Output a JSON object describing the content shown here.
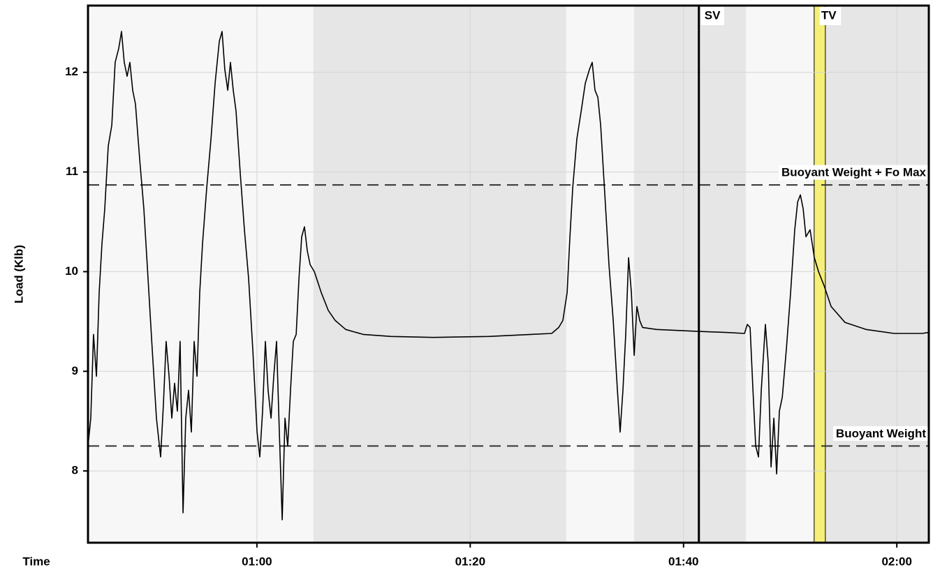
{
  "chart_data": {
    "type": "line",
    "x_label": "Time",
    "y_label": "Load (Klb)",
    "xlim": [
      44.16,
      123.0
    ],
    "ylim": [
      7.28,
      12.67
    ],
    "xticks": [
      {
        "value": 60,
        "label": "01:00"
      },
      {
        "value": 80,
        "label": "01:20"
      },
      {
        "value": 100,
        "label": "01:40"
      },
      {
        "value": 120,
        "label": "02:00"
      }
    ],
    "yticks": [
      8,
      9,
      10,
      11,
      12
    ],
    "grid": true,
    "color": "#000000",
    "background": "#f7f7f7",
    "shade_color": "#e6e6e6",
    "shaded_regions": [
      [
        65.3,
        89.0
      ],
      [
        95.36,
        105.85
      ],
      [
        113.3,
        123.0
      ]
    ],
    "reference_lines": [
      {
        "label": "Buoyant Weight + Fo Max",
        "value": 10.87
      },
      {
        "label": "Buoyant Weight",
        "value": 8.25
      }
    ],
    "markers": [
      {
        "label": "SV",
        "x": 101.44
      }
    ],
    "bands": [
      {
        "label": "TV",
        "x_range": [
          112.25,
          113.3
        ],
        "color": "#f5ef7a"
      }
    ],
    "x": [
      44.16,
      44.42,
      44.68,
      44.95,
      45.21,
      45.47,
      45.73,
      46.06,
      46.39,
      46.71,
      47.04,
      47.3,
      47.56,
      47.83,
      48.09,
      48.35,
      48.61,
      49.01,
      49.4,
      49.79,
      50.18,
      50.58,
      50.97,
      51.23,
      51.49,
      51.76,
      52.02,
      52.28,
      52.54,
      52.8,
      53.07,
      53.33,
      53.59,
      53.85,
      54.11,
      54.38,
      54.64,
      54.9,
      55.29,
      55.69,
      56.08,
      56.47,
      56.73,
      56.99,
      57.26,
      57.52,
      57.78,
      58.04,
      58.44,
      58.83,
      59.22,
      59.61,
      60.01,
      60.27,
      60.53,
      60.79,
      61.05,
      61.32,
      61.58,
      61.84,
      62.1,
      62.37,
      62.63,
      62.89,
      63.15,
      63.41,
      63.68,
      63.94,
      64.2,
      64.46,
      64.72,
      64.99,
      65.38,
      66.03,
      66.69,
      67.34,
      68.32,
      69.96,
      72.58,
      76.51,
      81.75,
      85.68,
      87.64,
      88.3,
      88.69,
      89.09,
      89.35,
      89.61,
      90.0,
      90.4,
      90.79,
      91.18,
      91.44,
      91.7,
      91.97,
      92.23,
      92.62,
      93.01,
      93.41,
      93.8,
      94.06,
      94.32,
      94.58,
      94.85,
      95.11,
      95.37,
      95.63,
      95.89,
      96.16,
      97.47,
      99.43,
      101.4,
      104.02,
      105.72,
      105.98,
      106.24,
      106.51,
      106.77,
      107.03,
      107.29,
      107.68,
      107.94,
      108.21,
      108.47,
      108.73,
      108.99,
      109.26,
      109.65,
      110.04,
      110.43,
      110.7,
      110.96,
      111.22,
      111.48,
      111.87,
      112.27,
      112.66,
      113.18,
      113.84,
      115.15,
      117.11,
      119.73,
      122.35,
      123.0
    ],
    "values": [
      8.25,
      8.53,
      9.37,
      8.95,
      9.79,
      10.28,
      10.63,
      11.26,
      11.47,
      12.1,
      12.24,
      12.41,
      12.1,
      11.96,
      12.1,
      11.82,
      11.68,
      11.12,
      10.63,
      9.93,
      9.23,
      8.53,
      8.14,
      8.67,
      9.3,
      8.95,
      8.53,
      8.88,
      8.6,
      9.3,
      7.58,
      8.53,
      8.81,
      8.39,
      9.3,
      8.95,
      9.79,
      10.28,
      10.84,
      11.33,
      11.89,
      12.31,
      12.41,
      12.03,
      11.82,
      12.1,
      11.82,
      11.61,
      10.98,
      10.42,
      9.93,
      9.23,
      8.39,
      8.14,
      8.6,
      9.3,
      8.81,
      8.53,
      8.95,
      9.3,
      8.39,
      7.51,
      8.53,
      8.25,
      8.81,
      9.3,
      9.37,
      9.93,
      10.35,
      10.45,
      10.21,
      10.07,
      10.0,
      9.79,
      9.61,
      9.51,
      9.42,
      9.37,
      9.35,
      9.34,
      9.35,
      9.37,
      9.38,
      9.44,
      9.51,
      9.79,
      10.35,
      10.84,
      11.33,
      11.61,
      11.89,
      12.03,
      12.1,
      11.82,
      11.75,
      11.47,
      10.77,
      10.07,
      9.51,
      8.81,
      8.39,
      8.81,
      9.37,
      10.14,
      9.79,
      9.16,
      9.65,
      9.51,
      9.44,
      9.42,
      9.41,
      9.4,
      9.39,
      9.38,
      9.47,
      9.44,
      8.81,
      8.25,
      8.14,
      8.81,
      9.47,
      9.09,
      8.04,
      8.53,
      7.97,
      8.6,
      8.74,
      9.23,
      9.79,
      10.42,
      10.7,
      10.77,
      10.63,
      10.35,
      10.42,
      10.14,
      10.0,
      9.86,
      9.65,
      9.49,
      9.42,
      9.38,
      9.38,
      9.39
    ]
  }
}
